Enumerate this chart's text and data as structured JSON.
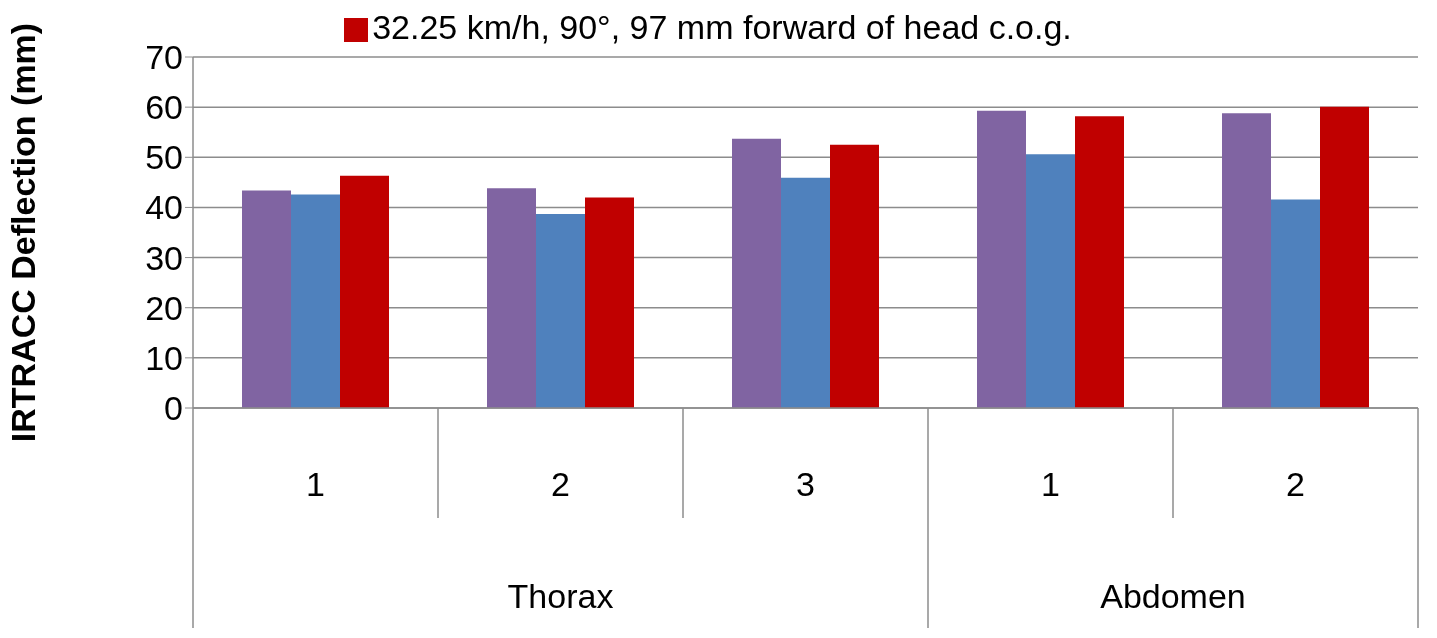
{
  "chart_data": {
    "type": "bar",
    "ylabel": "IRTRACC Deflection (mm)",
    "categories": [
      "1",
      "2",
      "3",
      "1",
      "2"
    ],
    "series": [
      {
        "color": "#8064a2",
        "values": [
          43.4,
          43.8,
          53.7,
          59.3,
          58.8
        ]
      },
      {
        "color": "#4f81bd",
        "values": [
          42.6,
          38.7,
          45.9,
          50.6,
          41.6
        ]
      },
      {
        "name": "32.25 km/h, 90°, 97 mm forward of head c.o.g.",
        "color": "#c00000",
        "values": [
          46.3,
          42.0,
          52.5,
          58.2,
          60.1
        ]
      }
    ],
    "annotations": [
      "Thorax",
      "Abdomen"
    ],
    "ylim": [
      0,
      70
    ],
    "yticks": [
      0,
      10,
      20,
      30,
      40,
      50,
      60,
      70
    ],
    "grid": "y",
    "legend": "top"
  }
}
